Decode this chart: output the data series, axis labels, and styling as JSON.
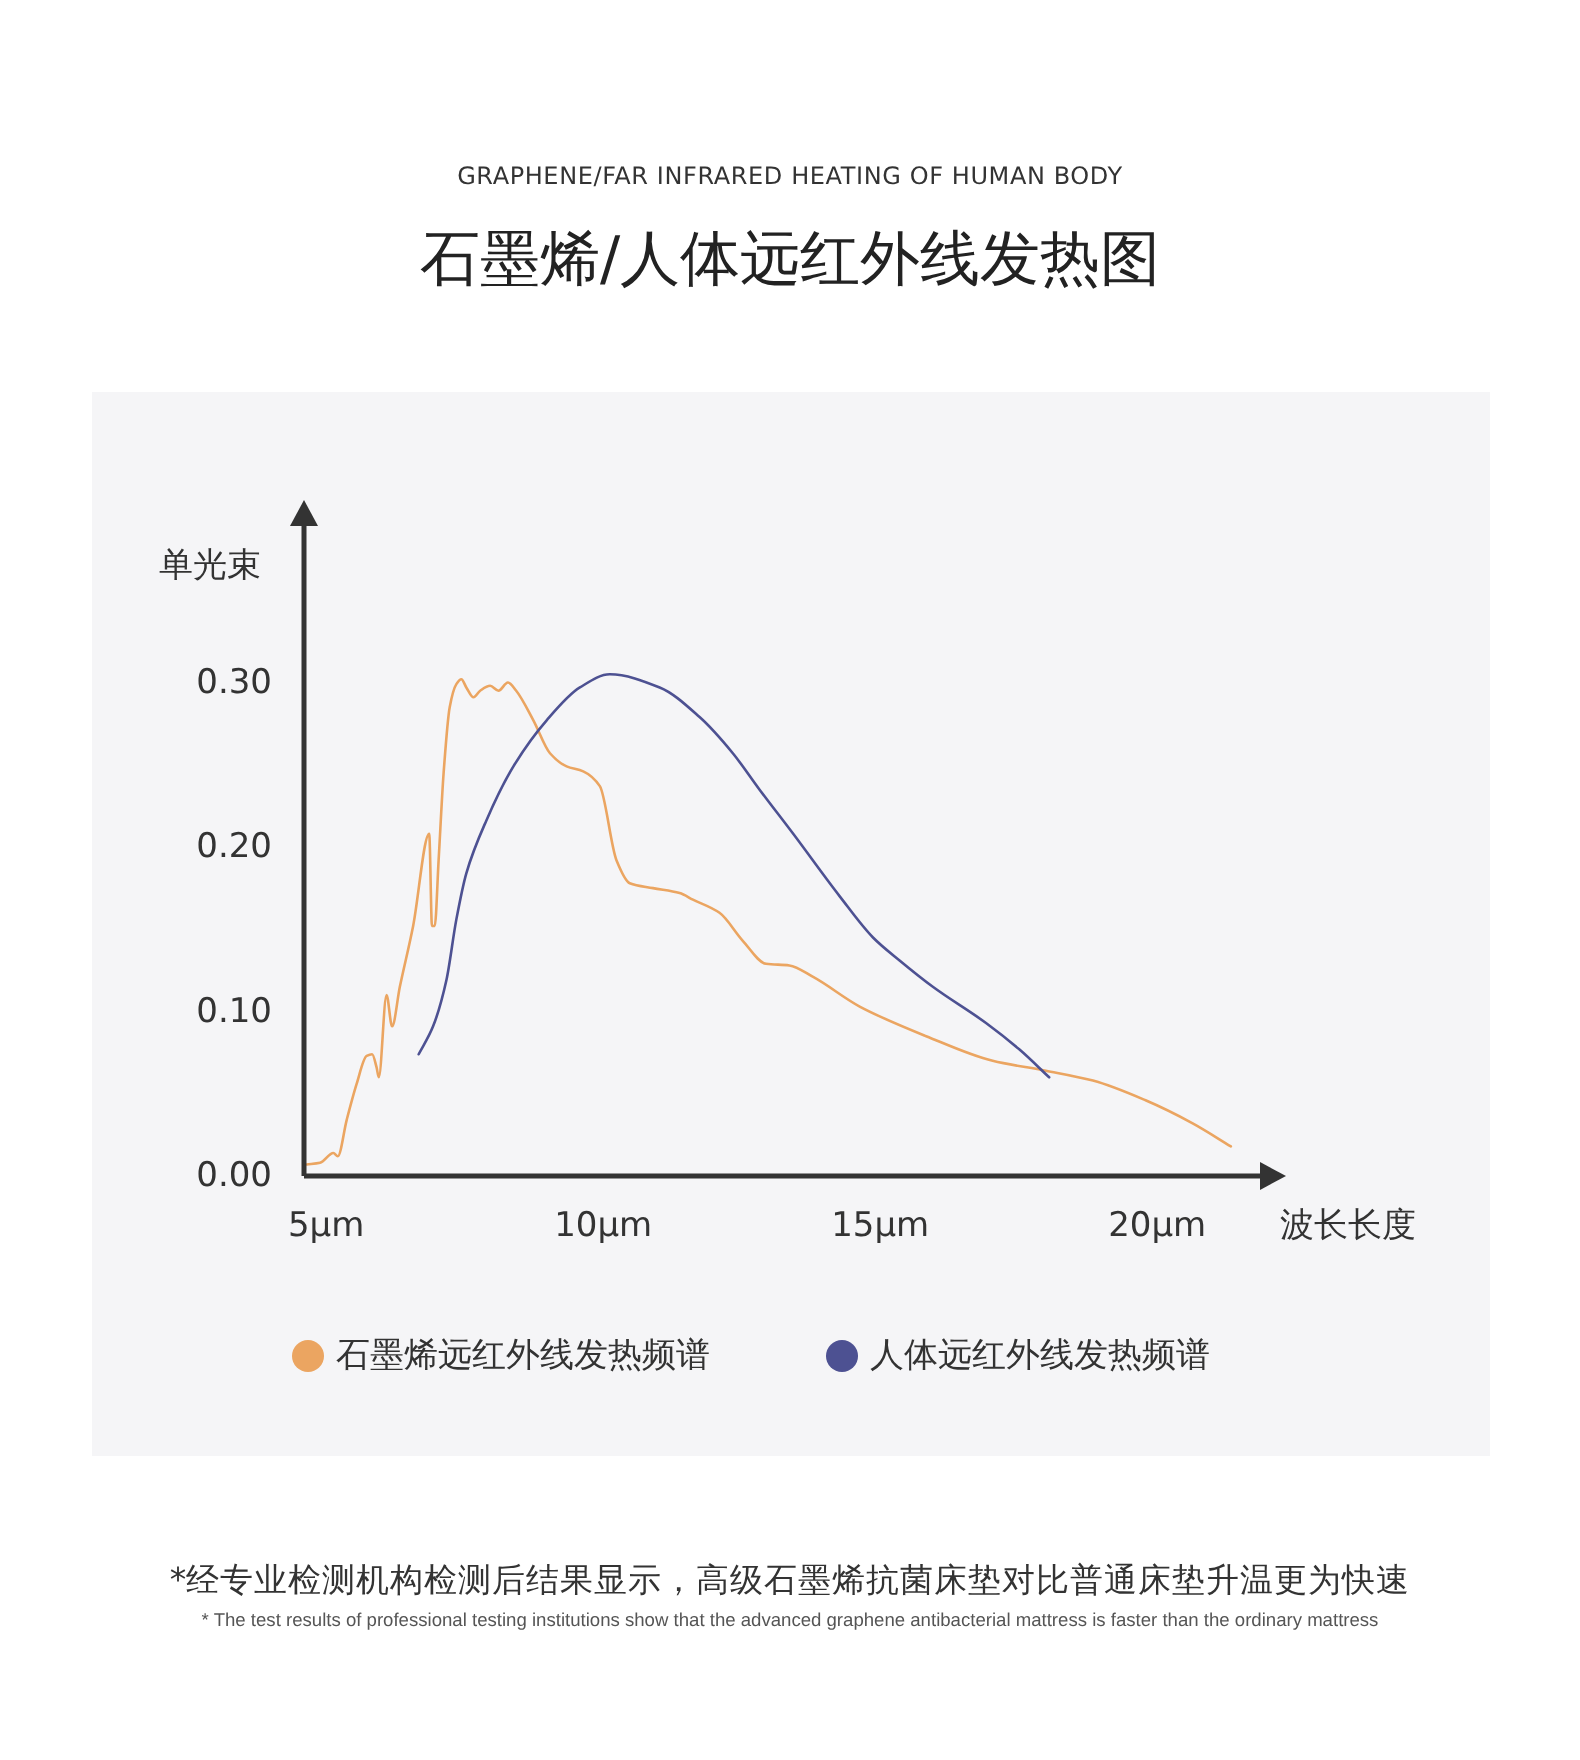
{
  "chart_data": {
    "type": "line",
    "subtitle": "GRAPHENE/FAR INFRARED HEATING OF HUMAN BODY",
    "title": "石墨烯/人体远红外线发热图",
    "xlabel": "波长长度",
    "ylabel": "单光束",
    "xlim": [
      4.6,
      22
    ],
    "ylim": [
      0,
      0.4
    ],
    "xticks": [
      {
        "value": 5,
        "label": "5µm"
      },
      {
        "value": 10,
        "label": "10µm"
      },
      {
        "value": 15,
        "label": "15µm"
      },
      {
        "value": 20,
        "label": "20µm"
      }
    ],
    "yticks": [
      {
        "value": 0,
        "label": "0.00"
      },
      {
        "value": 0.1,
        "label": "0.10"
      },
      {
        "value": 0.2,
        "label": "0.20"
      },
      {
        "value": 0.3,
        "label": "0.30"
      }
    ],
    "legend": "bottom",
    "series": [
      {
        "name": "石墨烯远红外线发热频谱",
        "color": "#eba561",
        "x": [
          4.65,
          4.89,
          5.13,
          5.21,
          5.37,
          5.55,
          5.73,
          5.83,
          5.91,
          5.95,
          6.09,
          6.19,
          6.33,
          6.57,
          6.86,
          6.91,
          6.96,
          7.03,
          7.12,
          7.23,
          7.35,
          7.44,
          7.53,
          7.66,
          7.78,
          7.96,
          8.11,
          8.28,
          8.43,
          8.74,
          9.04,
          9.34,
          9.64,
          9.94,
          10.24,
          10.48,
          10.9,
          11.38,
          11.62,
          12.1,
          12.52,
          12.94,
          13.36,
          13.79,
          14.63,
          15.83,
          17.03,
          17.99,
          18.84,
          19.79,
          20.64,
          21.33
        ],
        "values": [
          0.007,
          0.008,
          0.014,
          0.012,
          0.034,
          0.056,
          0.073,
          0.074,
          0.066,
          0.06,
          0.11,
          0.091,
          0.115,
          0.152,
          0.208,
          0.152,
          0.152,
          0.192,
          0.245,
          0.285,
          0.299,
          0.302,
          0.297,
          0.291,
          0.295,
          0.298,
          0.295,
          0.3,
          0.295,
          0.277,
          0.257,
          0.249,
          0.246,
          0.237,
          0.192,
          0.178,
          0.175,
          0.172,
          0.168,
          0.16,
          0.143,
          0.129,
          0.128,
          0.121,
          0.103,
          0.085,
          0.07,
          0.064,
          0.058,
          0.046,
          0.032,
          0.018
        ]
      },
      {
        "name": "人体远红外线发热频谱",
        "color": "#4d5192",
        "x": [
          6.67,
          6.93,
          7.17,
          7.35,
          7.53,
          7.89,
          8.38,
          8.98,
          9.58,
          10.12,
          11.02,
          11.74,
          12.34,
          12.82,
          13.43,
          14.27,
          14.87,
          15.35,
          15.95,
          16.91,
          17.51,
          18.05
        ],
        "values": [
          0.074,
          0.091,
          0.119,
          0.156,
          0.184,
          0.216,
          0.249,
          0.277,
          0.297,
          0.305,
          0.297,
          0.279,
          0.257,
          0.235,
          0.208,
          0.17,
          0.145,
          0.131,
          0.115,
          0.093,
          0.077,
          0.06
        ]
      }
    ],
    "annotations": [
      "*经专业检测机构检测后结果显示，高级石墨烯抗菌床垫对比普通床垫升温更为快速",
      "* The test results of professional testing institutions show that the advanced graphene antibacterial mattress is faster than the ordinary mattress"
    ]
  }
}
